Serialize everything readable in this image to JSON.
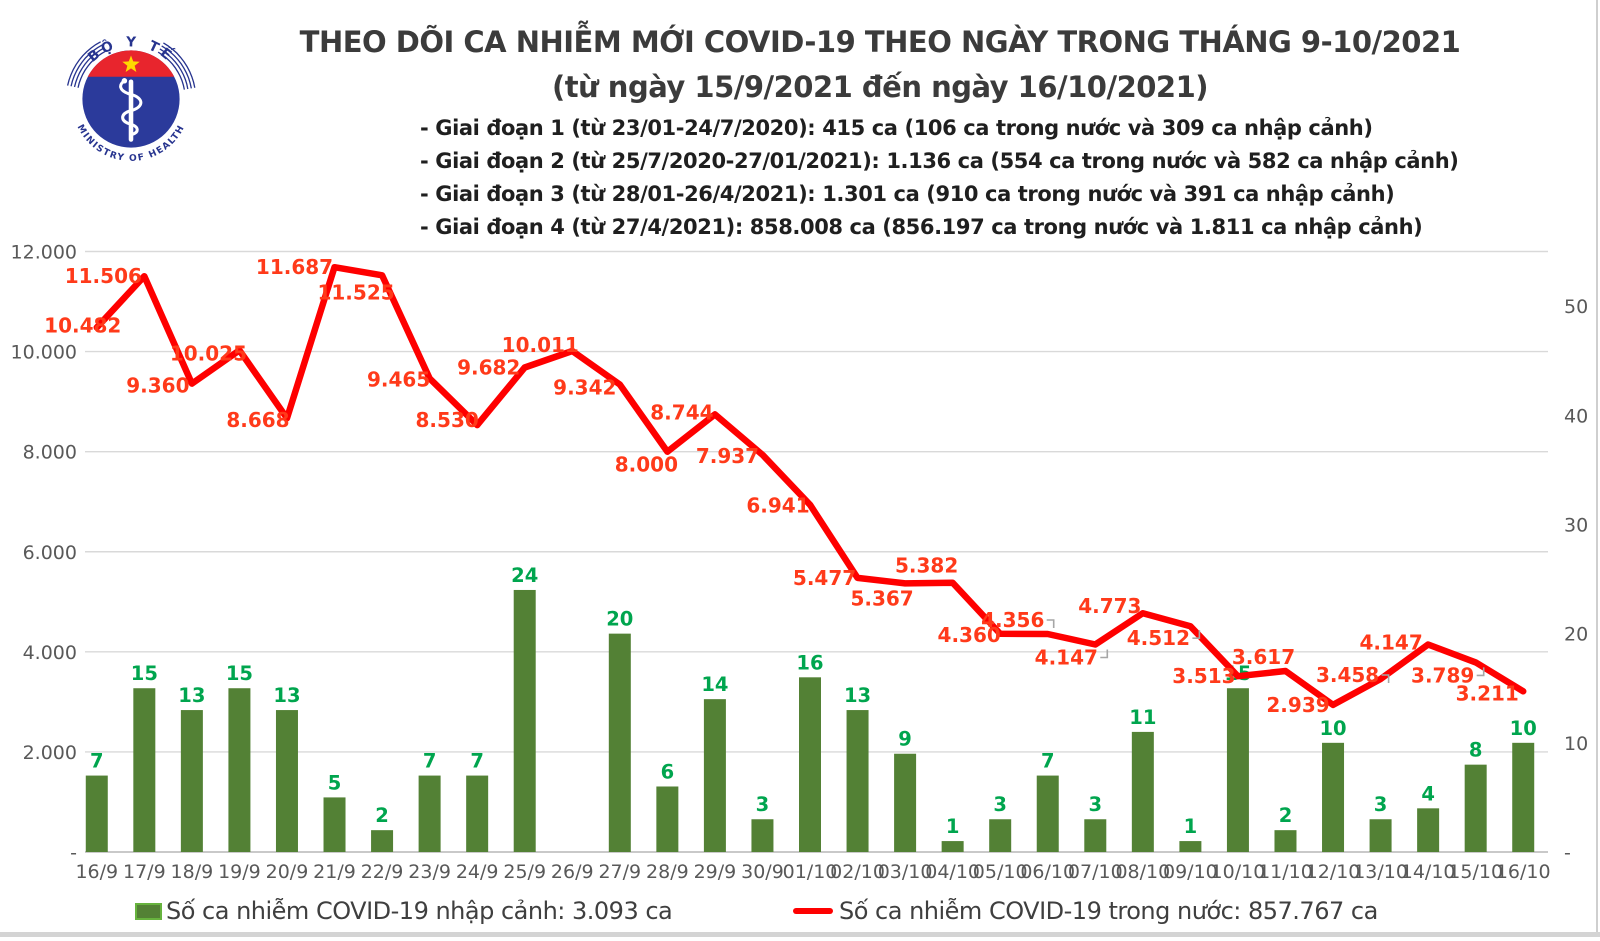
{
  "logo": {
    "top_text": "BỘ Y TẾ",
    "bottom_text": "MINISTRY OF HEALTH"
  },
  "chart_data": {
    "type": "combo",
    "title": "THEO DÕI CA NHIỄM MỚI COVID-19 THEO NGÀY TRONG THÁNG 9-10/2021",
    "subtitle": "(từ ngày 15/9/2021 đến ngày 16/10/2021)",
    "annotations": [
      "- Giai đoạn 1 (từ 23/01-24/7/2020): 415 ca (106 ca trong nước và 309 ca nhập cảnh)",
      "- Giai đoạn 2 (từ 25/7/2020-27/01/2021): 1.136 ca (554 ca trong nước và 582 ca nhập cảnh)",
      "- Giai đoạn 3 (từ 28/01-26/4/2021): 1.301 ca (910 ca trong nước và 391 ca nhập cảnh)",
      "- Giai đoạn 4 (từ 27/4/2021): 858.008 ca (856.197 ca trong nước và 1.811 ca nhập cảnh)"
    ],
    "categories": [
      "16/9",
      "17/9",
      "18/9",
      "19/9",
      "20/9",
      "21/9",
      "22/9",
      "23/9",
      "24/9",
      "25/9",
      "26/9",
      "27/9",
      "28/9",
      "29/9",
      "30/9",
      "01/10",
      "02/10",
      "03/10",
      "04/10",
      "05/10",
      "06/10",
      "07/10",
      "08/10",
      "09/10",
      "10/10",
      "11/10",
      "12/10",
      "13/10",
      "14/10",
      "15/10",
      "16/10"
    ],
    "series": [
      {
        "name": "Số ca nhiễm COVID-19 nhập cảnh: 3.093 ca",
        "type": "bar",
        "axis": "right",
        "color": "#538135",
        "label_color": "#00a54e",
        "values": [
          7,
          15,
          13,
          15,
          13,
          5,
          2,
          7,
          7,
          24,
          0,
          20,
          6,
          14,
          3,
          16,
          13,
          9,
          1,
          3,
          7,
          3,
          11,
          1,
          15,
          2,
          10,
          3,
          4,
          8,
          10
        ]
      },
      {
        "name": "Số ca nhiễm COVID-19 trong nước: 857.767 ca",
        "type": "line",
        "axis": "left",
        "color": "#fe0000",
        "label_color": "#ff3a1a",
        "values": [
          10482,
          11506,
          9360,
          10025,
          8668,
          11687,
          11525,
          9465,
          8530,
          9682,
          10011,
          9342,
          8000,
          8744,
          7937,
          6941,
          5477,
          5367,
          5382,
          4360,
          4356,
          4147,
          4773,
          4512,
          3513,
          3617,
          2939,
          3458,
          4147,
          3789,
          3211
        ],
        "point_labels": [
          "10.482",
          "11.506",
          "9.360",
          "10.025",
          "8.668",
          "11.687",
          "11.525",
          "9.465",
          "8.530",
          "9.682",
          "10.011",
          "9.342",
          "8.000",
          "8.744",
          "7.937",
          "6.941",
          "5.477",
          "5.367",
          "5.382",
          "4.360",
          "4.356",
          "4.147",
          "4.773",
          "4.512",
          "3.513",
          "3.617",
          "2.939",
          "3.458",
          "4.147",
          "3.789",
          "3.211"
        ]
      }
    ],
    "left_axis": {
      "min": 0,
      "max": 12000,
      "major_unit": 2000,
      "tick_labels": [
        "12.000",
        "10.000",
        "8.000",
        "6.000",
        "4.000",
        "2.000",
        "-"
      ]
    },
    "right_axis": {
      "min": 0,
      "max": 55,
      "major_unit": 10,
      "tick_labels": [
        "50",
        "40",
        "30",
        "20",
        "10",
        "-"
      ]
    },
    "grid": true,
    "legend_position": "bottom"
  }
}
